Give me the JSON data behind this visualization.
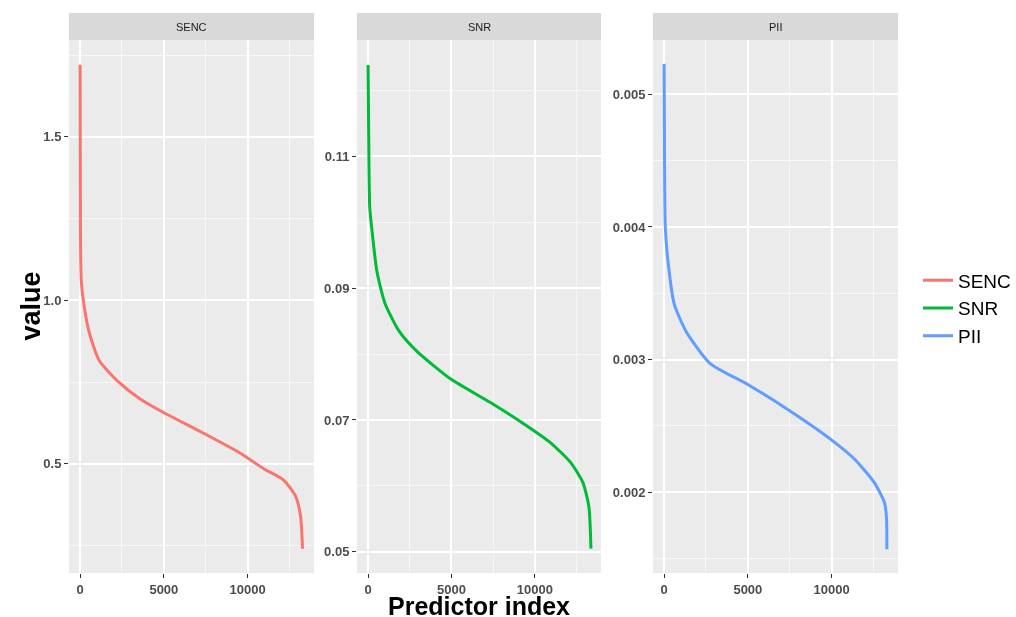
{
  "chart_data": [
    {
      "type": "line",
      "title": "SENC",
      "ylabel": "value",
      "legend": "right",
      "grid": true,
      "xlim": [
        -664,
        13964
      ],
      "xticks": [
        0,
        {
          "value": 2500,
          "label": null
        },
        5000,
        {
          "value": 7500,
          "label": null
        },
        10000,
        {
          "value": 12500,
          "label": null
        }
      ],
      "ylim": [
        0.166,
        1.796
      ],
      "yticks": [
        {
          "value": 0.25,
          "label": null
        },
        0.5,
        {
          "value": 0.75,
          "label": null
        },
        {
          "value": 1.0,
          "label": "1.0"
        },
        {
          "value": 1.25,
          "label": null
        },
        1.5,
        {
          "value": 1.75,
          "label": null
        }
      ],
      "series": [
        {
          "name": "SENC",
          "color": "#f8766d",
          "x": [
            0,
            20,
            70,
            190,
            550,
            1150,
            2340,
            3540,
            4980,
            7130,
            9520,
            10960,
            12150,
            12870,
            13160,
            13280
          ],
          "values": [
            1.72,
            1.2,
            1.06,
            1.0,
            0.9,
            0.815,
            0.748,
            0.7,
            0.657,
            0.6,
            0.534,
            0.485,
            0.45,
            0.4,
            0.34,
            0.24
          ]
        }
      ]
    },
    {
      "type": "line",
      "title": "SNR",
      "xlabel": "Predictor index",
      "legend": "right",
      "grid": true,
      "xlim": [
        -664,
        13964
      ],
      "xticks": [
        0,
        {
          "value": 2500,
          "label": null
        },
        5000,
        {
          "value": 7500,
          "label": null
        },
        10000,
        {
          "value": 12500,
          "label": null
        }
      ],
      "ylim": [
        0.0468,
        0.1276
      ],
      "yticks": [
        0.05,
        {
          "value": 0.06,
          "label": null
        },
        0.07,
        {
          "value": 0.08,
          "label": null
        },
        0.09,
        {
          "value": 0.1,
          "label": null
        },
        0.11,
        {
          "value": 0.12,
          "label": null
        }
      ],
      "series": [
        {
          "name": "SNR",
          "color": "#00ba38",
          "x": [
            0,
            50,
            100,
            240,
            530,
            1010,
            1850,
            2930,
            4960,
            7360,
            9280,
            10960,
            12160,
            12880,
            13240,
            13360
          ],
          "values": [
            0.1238,
            0.1095,
            0.1022,
            0.0986,
            0.0925,
            0.0877,
            0.0835,
            0.0804,
            0.0762,
            0.0726,
            0.0695,
            0.0665,
            0.0635,
            0.0605,
            0.0568,
            0.0505
          ]
        }
      ]
    },
    {
      "type": "line",
      "title": "PII",
      "legend": "right",
      "grid": true,
      "xlim": [
        -664,
        13964
      ],
      "xticks": [
        0,
        {
          "value": 2500,
          "label": null
        },
        5000,
        {
          "value": 7500,
          "label": null
        },
        10000,
        {
          "value": 12500,
          "label": null
        }
      ],
      "ylim": [
        0.00139,
        0.00541
      ],
      "yticks": [
        {
          "value": 0.0015,
          "label": null
        },
        0.002,
        {
          "value": 0.0025,
          "label": null
        },
        0.003,
        {
          "value": 0.0035,
          "label": null
        },
        0.004,
        {
          "value": 0.0045,
          "label": null
        },
        0.005
      ],
      "series": [
        {
          "name": "PII",
          "color": "#619cff",
          "x": [
            0,
            25,
            70,
            240,
            600,
            1320,
            2750,
            5020,
            7540,
            9930,
            11360,
            12560,
            13160,
            13280,
            13300
          ],
          "values": [
            0.00523,
            0.00451,
            0.004,
            0.00373,
            0.00342,
            0.00321,
            0.00297,
            0.00281,
            0.00261,
            0.0024,
            0.00225,
            0.00207,
            0.00192,
            0.0018,
            0.00157
          ]
        }
      ]
    }
  ]
}
